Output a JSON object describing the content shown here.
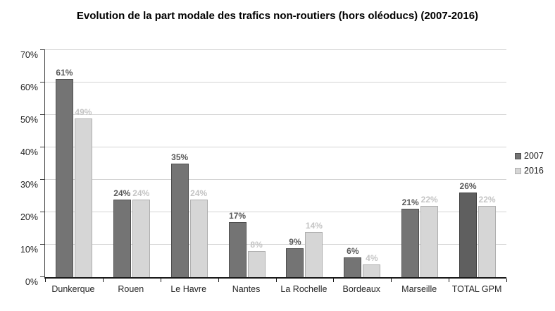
{
  "title": "Evolution de la part modale des trafics non-routiers (hors oléoducs) (2007-2016)",
  "chart_data": {
    "type": "bar",
    "title": "Evolution de la part modale des trafics non-routiers (hors oléoducs) (2007-2016)",
    "categories": [
      "Dunkerque",
      "Rouen",
      "Le Havre",
      "Nantes",
      "La Rochelle",
      "Bordeaux",
      "Marseille",
      "TOTAL GPM"
    ],
    "series": [
      {
        "name": "2007",
        "values": [
          61,
          24,
          35,
          17,
          9,
          6,
          21,
          26
        ]
      },
      {
        "name": "2016",
        "values": [
          49,
          24,
          24,
          8,
          14,
          4,
          22,
          22
        ]
      }
    ],
    "value_suffix": "%",
    "xlabel": "",
    "ylabel": "",
    "ylim": [
      0,
      70
    ],
    "ytick_step": 10,
    "ytick_labels": [
      "0%",
      "10%",
      "20%",
      "30%",
      "40%",
      "50%",
      "60%",
      "70%"
    ],
    "grid": true,
    "legend_position": "right"
  },
  "style": {
    "series": [
      {
        "fill": "#747474",
        "border": "#4f4f4f",
        "label_color": "#595959"
      },
      {
        "fill": "#d6d6d6",
        "border": "#aeaeae",
        "label_color": "#c4c4c4"
      }
    ],
    "highlight": {
      "category": "TOTAL GPM",
      "series": "2007",
      "fill": "#5f5f5f",
      "border": "#3d3d3d"
    },
    "gridline_color": "#d4d4d4",
    "axis_text_color": "#262626",
    "axis_line_color": "#404040"
  }
}
